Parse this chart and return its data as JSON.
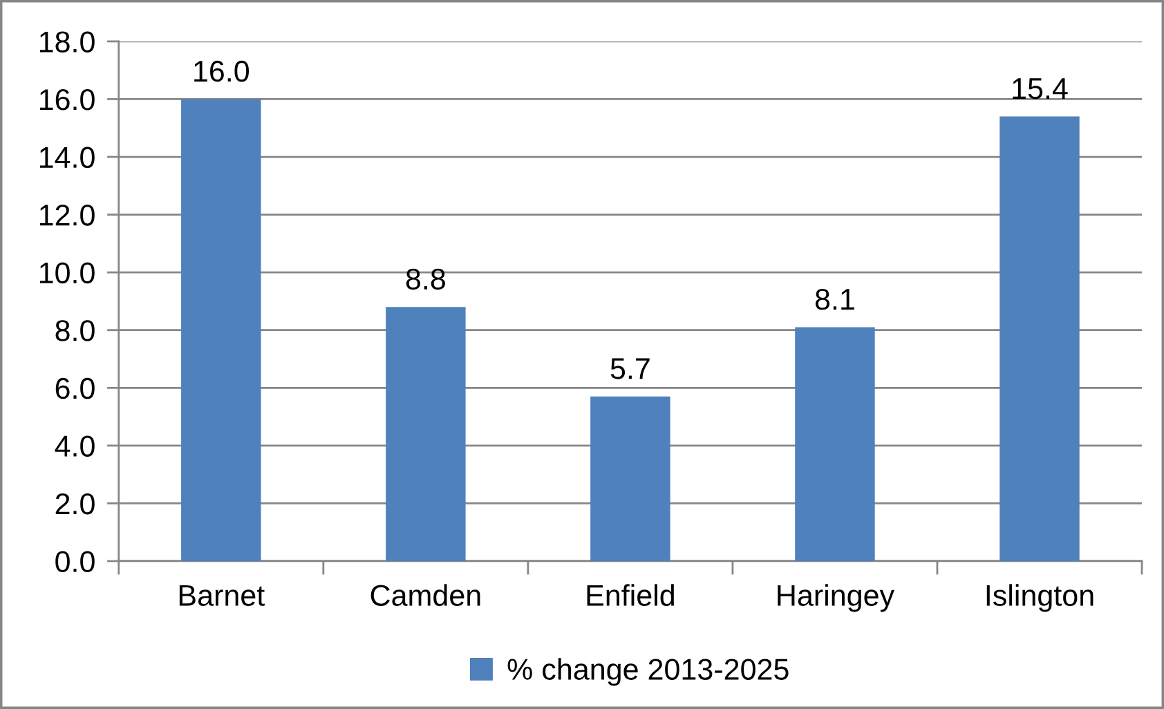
{
  "chart_data": {
    "type": "bar",
    "categories": [
      "Barnet",
      "Camden",
      "Enfield",
      "Haringey",
      "Islington"
    ],
    "series": [
      {
        "name": "% change 2013-2025",
        "color": "#4f81bd",
        "values": [
          16.0,
          8.8,
          5.7,
          8.1,
          15.4
        ],
        "value_labels": [
          "16.0",
          "8.8",
          "5.7",
          "8.1",
          "15.4"
        ]
      }
    ],
    "ylim": [
      0,
      18
    ],
    "yticks": [
      {
        "value": 0,
        "label": "0.0"
      },
      {
        "value": 2,
        "label": "2.0"
      },
      {
        "value": 4,
        "label": "4.0"
      },
      {
        "value": 6,
        "label": "6.0"
      },
      {
        "value": 8,
        "label": "8.0"
      },
      {
        "value": 10,
        "label": "10.0"
      },
      {
        "value": 12,
        "label": "12.0"
      },
      {
        "value": 14,
        "label": "14.0"
      },
      {
        "value": 16,
        "label": "16.0"
      },
      {
        "value": 18,
        "label": "18.0"
      }
    ],
    "grid": "y",
    "legend": "bottom"
  }
}
